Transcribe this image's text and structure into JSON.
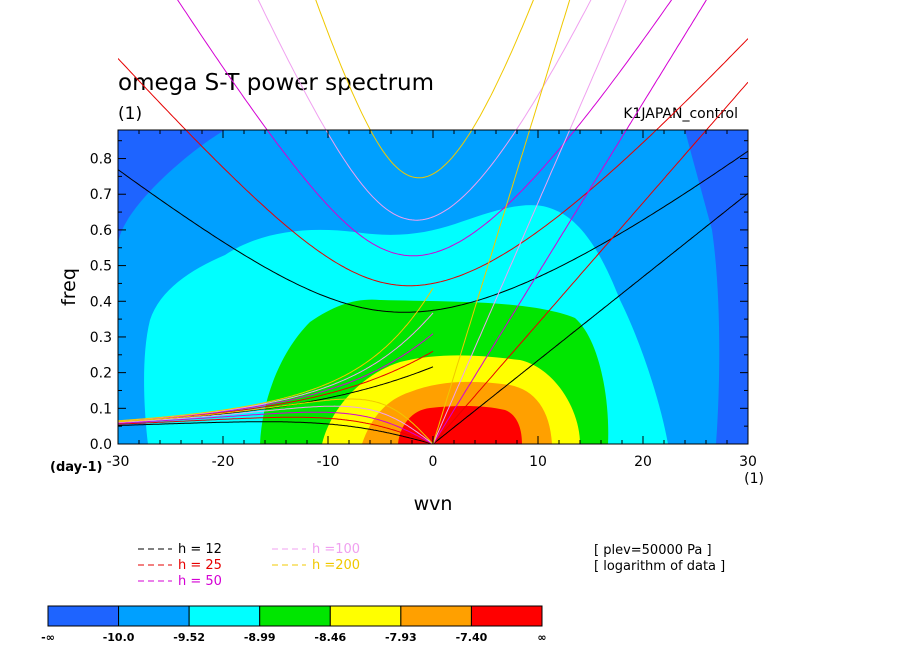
{
  "chart_data": {
    "type": "heatmap",
    "title": "omega S-T power spectrum",
    "subtitle": "(1)",
    "run_label": "K1JAPAN_control",
    "xlabel": "wvn",
    "ylabel": "freq",
    "x_unit": "(1)",
    "y_unit": "(day-1)",
    "xlim": [
      -30,
      30
    ],
    "ylim": [
      0,
      0.88
    ],
    "xticks": [
      "-30",
      "-20",
      "-10",
      "0",
      "10",
      "20",
      "30"
    ],
    "yticks": [
      "0.0",
      "0.1",
      "0.2",
      "0.3",
      "0.4",
      "0.5",
      "0.6",
      "0.7",
      "0.8"
    ],
    "colorbar": {
      "colors": [
        "#1e64ff",
        "#00a0ff",
        "#00ffff",
        "#00e600",
        "#ffff00",
        "#ffa000",
        "#ff0000"
      ],
      "labels": [
        "-∞",
        "-10.0",
        "-9.52",
        "-8.99",
        "-8.46",
        "-7.93",
        "-7.40",
        "∞"
      ]
    },
    "contour_levels": [
      -10.0,
      -9.52,
      -8.99,
      -8.46,
      -7.93,
      -7.4
    ],
    "dispersion_legend": [
      {
        "label": "h = 12",
        "color": "#000000"
      },
      {
        "label": "h = 25",
        "color": "#e60000"
      },
      {
        "label": "h = 50",
        "color": "#d400d4"
      },
      {
        "label": "h =100",
        "color": "#f0a0f0"
      },
      {
        "label": "h =200",
        "color": "#f0c800"
      }
    ],
    "notes": [
      "[ plev=50000 Pa ]",
      "[ logarithm of data ]"
    ]
  }
}
